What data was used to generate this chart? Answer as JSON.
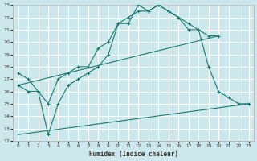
{
  "xlabel": "Humidex (Indice chaleur)",
  "xlim": [
    -0.5,
    23.5
  ],
  "ylim": [
    12,
    23
  ],
  "yticks": [
    12,
    13,
    14,
    15,
    16,
    17,
    18,
    19,
    20,
    21,
    22,
    23
  ],
  "xticks": [
    0,
    1,
    2,
    3,
    4,
    5,
    6,
    7,
    8,
    9,
    10,
    11,
    12,
    13,
    14,
    15,
    16,
    17,
    18,
    19,
    20,
    21,
    22,
    23
  ],
  "bg_color": "#cce8ec",
  "grid_color": "#ffffff",
  "line_color": "#1a7a6e",
  "line1_x": [
    0,
    1,
    2,
    3,
    4,
    5,
    6,
    7,
    8,
    9,
    10,
    11,
    12,
    13,
    14,
    15,
    16,
    17,
    18,
    19,
    20
  ],
  "line1_y": [
    17.5,
    17.0,
    16.0,
    15.0,
    17.0,
    17.5,
    18.0,
    18.0,
    19.5,
    20.0,
    21.5,
    21.5,
    23.0,
    22.5,
    23.0,
    22.5,
    22.0,
    21.0,
    21.0,
    20.5,
    20.5
  ],
  "line2_x": [
    0,
    1,
    2,
    3,
    4,
    5,
    6,
    7,
    8,
    9,
    10,
    11,
    12,
    13,
    14,
    15,
    16,
    17,
    18,
    19,
    20,
    21,
    22,
    23
  ],
  "line2_y": [
    16.5,
    16.0,
    16.0,
    12.5,
    15.0,
    16.5,
    17.0,
    17.5,
    18.0,
    19.0,
    21.5,
    22.0,
    22.5,
    22.5,
    23.0,
    22.5,
    22.0,
    21.5,
    21.0,
    18.0,
    16.0,
    15.5,
    15.0,
    15.0
  ],
  "line3_x": [
    0,
    20
  ],
  "line3_y": [
    16.5,
    20.5
  ],
  "line4_x": [
    0,
    23
  ],
  "line4_y": [
    12.5,
    15.0
  ]
}
